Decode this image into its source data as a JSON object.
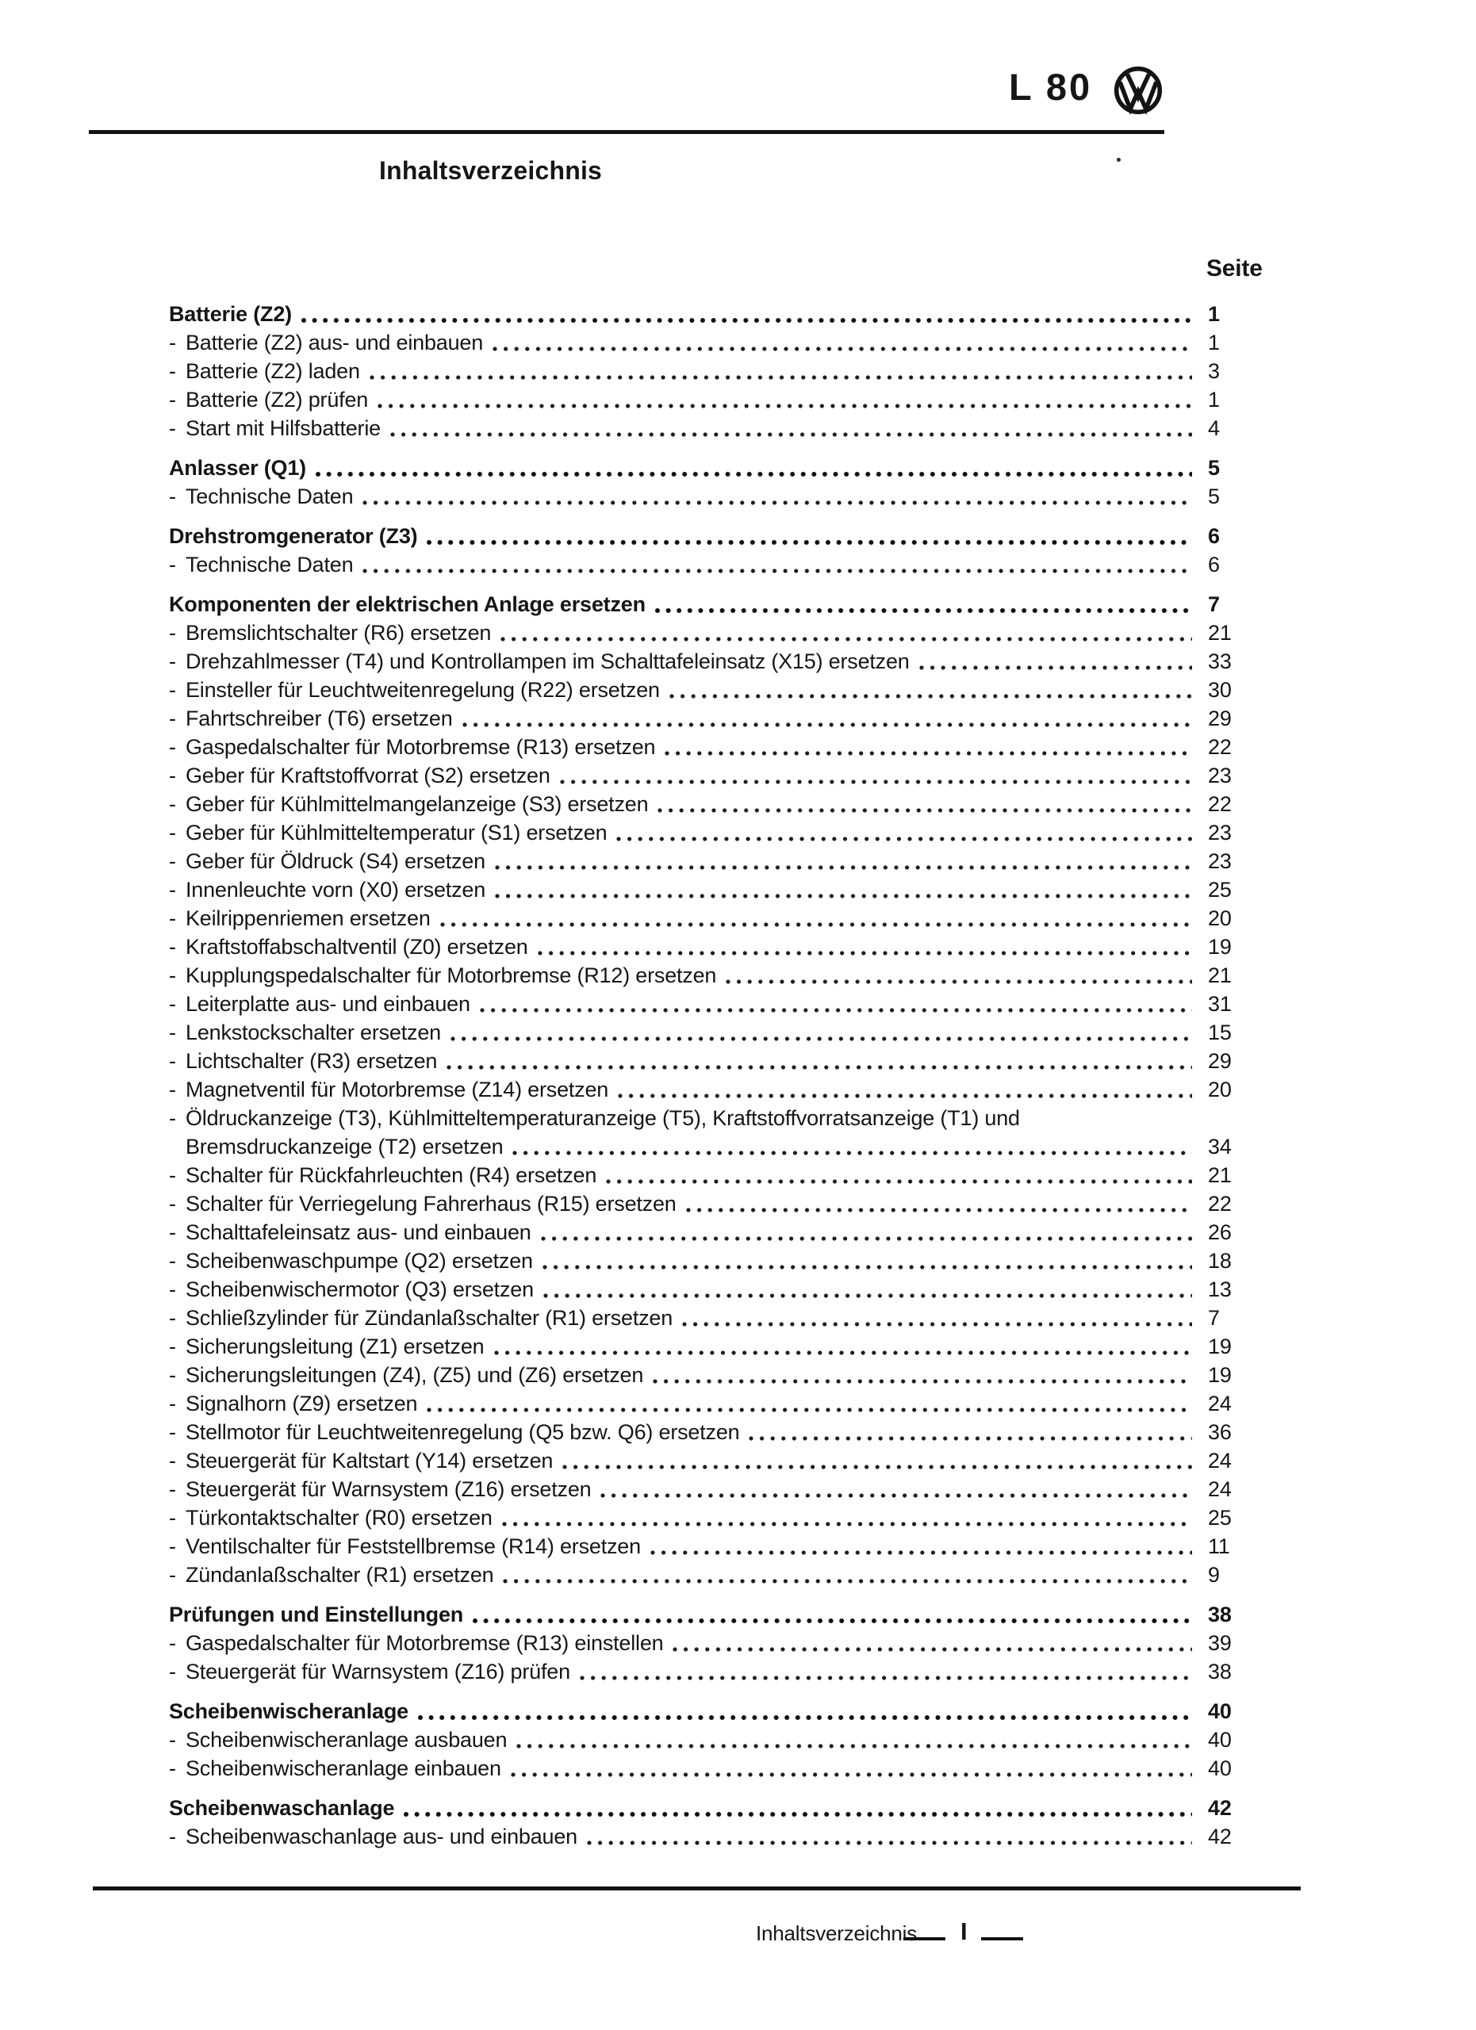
{
  "colors": {
    "ink": "#161616",
    "paper": "#ffffff"
  },
  "header": {
    "model": "L 80",
    "logo_icon": "vw-logo"
  },
  "title": "Inhaltsverzeichnis",
  "toc": {
    "page_column_header": "Seite",
    "sections": [
      {
        "title": "Batterie (Z2)",
        "page": "1",
        "entries": [
          {
            "label": "Batterie (Z2) aus- und einbauen",
            "page": "1"
          },
          {
            "label": "Batterie (Z2) laden",
            "page": "3"
          },
          {
            "label": "Batterie (Z2) prüfen",
            "page": "1"
          },
          {
            "label": "Start mit Hilfsbatterie",
            "page": "4"
          }
        ]
      },
      {
        "title": "Anlasser (Q1)",
        "page": "5",
        "entries": [
          {
            "label": "Technische Daten",
            "page": "5"
          }
        ]
      },
      {
        "title": "Drehstromgenerator (Z3)",
        "page": "6",
        "entries": [
          {
            "label": "Technische Daten",
            "page": "6"
          }
        ]
      },
      {
        "title": "Komponenten der elektrischen Anlage ersetzen",
        "page": "7",
        "entries": [
          {
            "label": "Bremslichtschalter (R6) ersetzen",
            "page": "21"
          },
          {
            "label": "Drehzahlmesser (T4) und Kontrollampen im Schalttafeleinsatz (X15) ersetzen",
            "page": "33"
          },
          {
            "label": "Einsteller für Leuchtweitenregelung (R22) ersetzen",
            "page": "30"
          },
          {
            "label": "Fahrtschreiber (T6) ersetzen",
            "page": "29"
          },
          {
            "label": "Gaspedalschalter für Motorbremse (R13) ersetzen",
            "page": "22"
          },
          {
            "label": "Geber für Kraftstoffvorrat (S2) ersetzen",
            "page": "23"
          },
          {
            "label": "Geber für Kühlmittelmangelanzeige (S3) ersetzen",
            "page": "22"
          },
          {
            "label": "Geber für Kühlmitteltemperatur (S1) ersetzen",
            "page": "23"
          },
          {
            "label": "Geber für Öldruck (S4) ersetzen",
            "page": "23"
          },
          {
            "label": "Innenleuchte vorn (X0) ersetzen",
            "page": "25"
          },
          {
            "label": "Keilrippenriemen ersetzen",
            "page": "20"
          },
          {
            "label": "Kraftstoffabschaltventil (Z0) ersetzen",
            "page": "19"
          },
          {
            "label": "Kupplungspedalschalter für Motorbremse (R12) ersetzen",
            "page": "21"
          },
          {
            "label": "Leiterplatte aus- und einbauen",
            "page": "31"
          },
          {
            "label": "Lenkstockschalter ersetzen",
            "page": "15"
          },
          {
            "label": "Lichtschalter (R3) ersetzen",
            "page": "29"
          },
          {
            "label": "Magnetventil für Motorbremse (Z14) ersetzen",
            "page": "20"
          },
          {
            "label": "Öldruckanzeige (T3), Kühlmitteltemperaturanzeige (T5), Kraftstoffvorratsanzeige (T1) und",
            "label_line2": "Bremsdruckanzeige (T2) ersetzen",
            "page": "34"
          },
          {
            "label": "Schalter für Rückfahrleuchten (R4) ersetzen",
            "page": "21"
          },
          {
            "label": "Schalter für Verriegelung Fahrerhaus (R15) ersetzen",
            "page": "22"
          },
          {
            "label": "Schalttafeleinsatz aus- und einbauen",
            "page": "26"
          },
          {
            "label": "Scheibenwaschpumpe (Q2) ersetzen",
            "page": "18"
          },
          {
            "label": "Scheibenwischermotor (Q3) ersetzen",
            "page": "13"
          },
          {
            "label": "Schließzylinder für Zündanlaßschalter (R1) ersetzen",
            "page": "7"
          },
          {
            "label": "Sicherungsleitung (Z1) ersetzen",
            "page": "19"
          },
          {
            "label": "Sicherungsleitungen (Z4), (Z5) und (Z6) ersetzen",
            "page": "19"
          },
          {
            "label": "Signalhorn (Z9) ersetzen",
            "page": "24"
          },
          {
            "label": "Stellmotor für Leuchtweitenregelung (Q5 bzw. Q6) ersetzen",
            "page": "36"
          },
          {
            "label": "Steuergerät für Kaltstart (Y14) ersetzen",
            "page": "24"
          },
          {
            "label": "Steuergerät für Warnsystem (Z16) ersetzen",
            "page": "24"
          },
          {
            "label": "Türkontaktschalter (R0) ersetzen",
            "page": "25"
          },
          {
            "label": "Ventilschalter für Feststellbremse (R14) ersetzen",
            "page": "11"
          },
          {
            "label": "Zündanlaßschalter (R1) ersetzen",
            "page": "9"
          }
        ]
      },
      {
        "title": "Prüfungen und Einstellungen",
        "page": "38",
        "entries": [
          {
            "label": "Gaspedalschalter für Motorbremse (R13) einstellen",
            "page": "39"
          },
          {
            "label": "Steuergerät für Warnsystem (Z16) prüfen",
            "page": "38"
          }
        ]
      },
      {
        "title": "Scheibenwischeranlage",
        "page": "40",
        "entries": [
          {
            "label": "Scheibenwischeranlage ausbauen",
            "page": "40"
          },
          {
            "label": "Scheibenwischeranlage einbauen",
            "page": "40"
          }
        ]
      },
      {
        "title": "Scheibenwaschanlage",
        "page": "42",
        "entries": [
          {
            "label": "Scheibenwaschanlage aus- und einbauen",
            "page": "42"
          }
        ]
      }
    ]
  },
  "footer": {
    "label": "Inhaltsverzeichnis",
    "page_number": "I"
  }
}
